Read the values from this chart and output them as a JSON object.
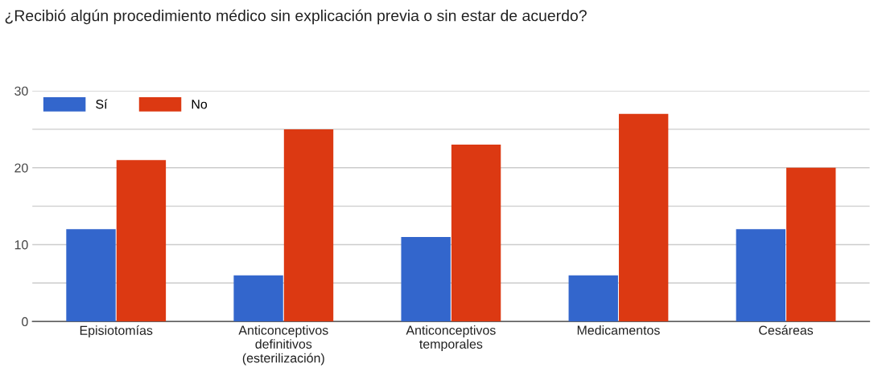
{
  "chart_data": {
    "type": "bar",
    "title": "¿Recibió algún procedimiento médico sin explicación previa o sin estar de acuerdo?",
    "categories": [
      "Episiotomías",
      "Anticonceptivos\ndefinitivos\n(esterilización)",
      "Anticonceptivos\ntemporales",
      "Medicamentos",
      "Cesáreas"
    ],
    "series": [
      {
        "name": "Sí",
        "color": "#3366cc",
        "values": [
          12,
          6,
          11,
          6,
          12
        ]
      },
      {
        "name": "No",
        "color": "#dc3912",
        "values": [
          21,
          25,
          23,
          27,
          20
        ]
      }
    ],
    "ylim": [
      0,
      30
    ],
    "yticks": [
      0,
      {
        "value": 5,
        "label": null
      },
      10,
      {
        "value": 15,
        "label": null
      },
      20,
      {
        "value": 25,
        "label": null
      },
      30
    ],
    "grid": "y",
    "legend": "top left"
  }
}
